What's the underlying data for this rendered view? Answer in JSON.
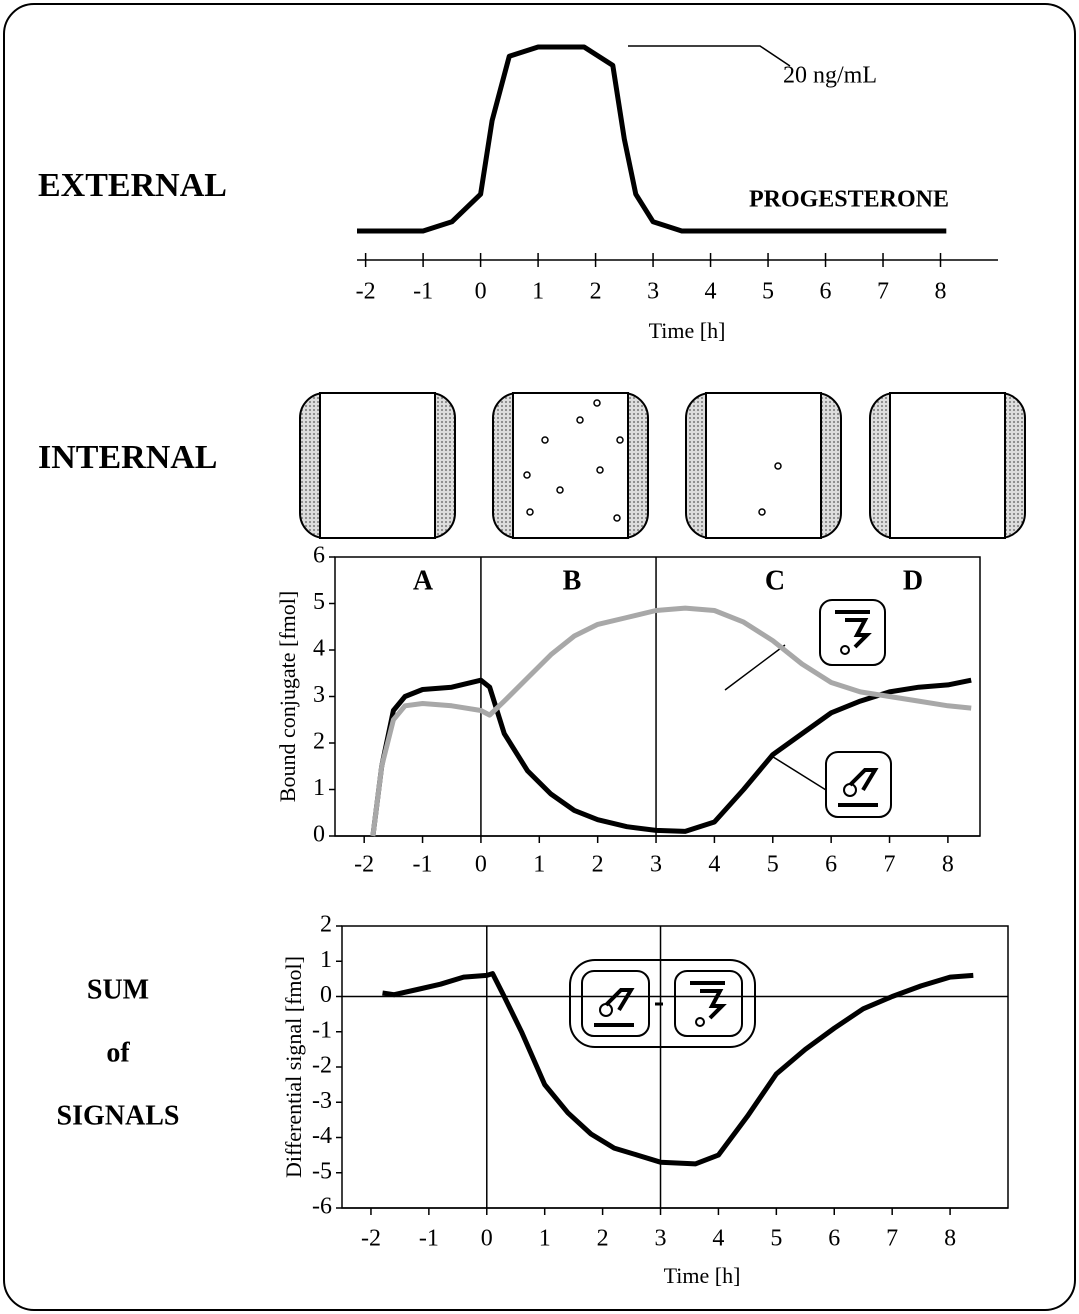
{
  "labels": {
    "external": "EXTERNAL",
    "internal": "INTERNAL",
    "sum": "SUM",
    "of": "of",
    "signals": "SIGNALS"
  },
  "chart_data": [
    {
      "type": "line",
      "x_label": "Time  [h]",
      "annotations": [
        "PROGESTERONE",
        "20 ng/mL"
      ],
      "xlim": [
        -2.15,
        9
      ],
      "xticks": [
        -2,
        -1,
        0,
        1,
        2,
        3,
        4,
        5,
        6,
        7,
        8
      ],
      "x": [
        -2.15,
        -1,
        -0.5,
        0,
        0.2,
        0.5,
        1,
        1.8,
        2.3,
        2.5,
        2.7,
        3,
        3.5,
        8.1
      ],
      "series": [
        {
          "color": "#000000",
          "values": [
            0,
            0,
            1,
            4,
            12,
            19,
            20,
            20,
            18,
            10,
            4,
            1,
            0,
            0
          ]
        }
      ]
    },
    {
      "type": "line",
      "y_label": "Bound conjugate [fmol]",
      "annotations": [
        "A",
        "B",
        "C",
        "D"
      ],
      "xlim": [
        -2.5,
        8.55
      ],
      "xticks": [
        -2,
        -1,
        0,
        1,
        2,
        3,
        4,
        5,
        6,
        7,
        8
      ],
      "ylim": [
        0,
        6
      ],
      "yticks": [
        0,
        1,
        2,
        3,
        4,
        5,
        6
      ],
      "x": [
        -1.85,
        -1.7,
        -1.5,
        -1.3,
        -1,
        -0.5,
        0,
        0.15,
        0.4,
        0.8,
        1.2,
        1.6,
        2,
        2.5,
        3,
        3.5,
        4,
        4.5,
        5,
        5.5,
        6,
        6.5,
        7,
        7.5,
        8,
        8.4
      ],
      "series": [
        {
          "color": "#000000",
          "values": [
            0,
            1.5,
            2.7,
            3.0,
            3.15,
            3.2,
            3.35,
            3.2,
            2.2,
            1.4,
            0.9,
            0.55,
            0.35,
            0.2,
            0.12,
            0.1,
            0.3,
            1.0,
            1.75,
            2.2,
            2.65,
            2.9,
            3.1,
            3.2,
            3.25,
            3.35
          ]
        },
        {
          "color": "#a8a8a8",
          "values": [
            0,
            1.5,
            2.5,
            2.8,
            2.85,
            2.8,
            2.7,
            2.6,
            2.9,
            3.4,
            3.9,
            4.3,
            4.55,
            4.7,
            4.85,
            4.9,
            4.85,
            4.6,
            4.2,
            3.7,
            3.3,
            3.1,
            3.0,
            2.9,
            2.8,
            2.75
          ]
        }
      ]
    },
    {
      "type": "line",
      "x_label": "Time  [h]",
      "y_label": "Differential signal [fmol]",
      "xlim": [
        -2.5,
        9
      ],
      "xticks": [
        -2,
        -1,
        0,
        1,
        2,
        3,
        4,
        5,
        6,
        7,
        8
      ],
      "ylim": [
        -6,
        2
      ],
      "yticks": [
        -6,
        -5,
        -4,
        -3,
        -2,
        -1,
        0,
        1,
        2
      ],
      "x": [
        -1.8,
        -1.6,
        -1.2,
        -0.8,
        -0.4,
        0,
        0.1,
        0.3,
        0.6,
        1,
        1.4,
        1.8,
        2.2,
        2.6,
        3,
        3.6,
        4,
        4.5,
        5,
        5.5,
        6,
        6.5,
        7,
        7.5,
        8,
        8.4
      ],
      "series": [
        {
          "color": "#000000",
          "values": [
            0.1,
            0.05,
            0.2,
            0.35,
            0.55,
            0.6,
            0.65,
            0,
            -1,
            -2.5,
            -3.3,
            -3.9,
            -4.3,
            -4.5,
            -4.7,
            -4.75,
            -4.5,
            -3.4,
            -2.2,
            -1.5,
            -0.9,
            -0.35,
            0,
            0.3,
            0.55,
            0.6
          ]
        }
      ]
    }
  ]
}
